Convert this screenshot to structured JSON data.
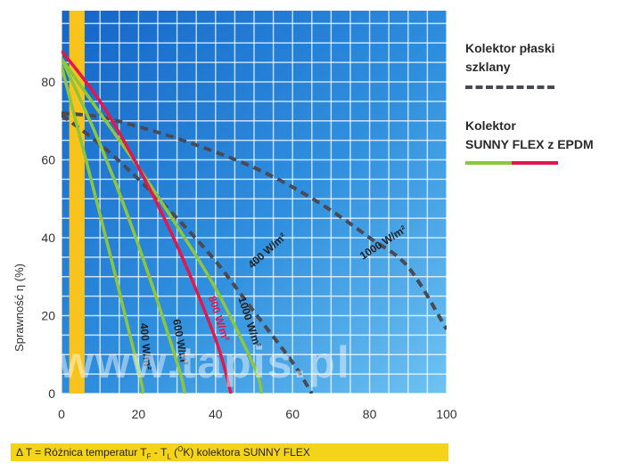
{
  "chart_data": {
    "type": "line",
    "title": "",
    "xlabel": "",
    "ylabel": "Sprawność η (%)",
    "xlim": [
      0,
      100
    ],
    "ylim": [
      0,
      100
    ],
    "x_ticks": [
      "0",
      "20",
      "40",
      "60",
      "80",
      "100"
    ],
    "y_ticks": [
      "0",
      "20",
      "40",
      "60",
      "80"
    ],
    "grid": true,
    "highlight_band_x": [
      2,
      6
    ],
    "legend": [
      {
        "label": "Kolektor płaski szklany",
        "style": "dashed",
        "color": "#4a4a55"
      },
      {
        "label": "Kolektor SUNNY FLEX z EPDM",
        "style": "solid",
        "colors": [
          "#8cc63f",
          "#e3174b"
        ]
      }
    ],
    "series": [
      {
        "label": "1000 W/m²",
        "group": "flat",
        "color": "#4a4a55",
        "dash": true,
        "x": [
          0,
          10,
          20,
          30,
          40,
          50,
          60,
          70,
          80,
          90,
          100
        ],
        "y": [
          72,
          71,
          68.5,
          65.5,
          62,
          58,
          53,
          47,
          40,
          32.5,
          16.5
        ]
      },
      {
        "label": "400 W/m²",
        "group": "flat",
        "color": "#4a4a55",
        "dash": true,
        "x": [
          0,
          10,
          20,
          30,
          40,
          50,
          60,
          65
        ],
        "y": [
          71.5,
          64,
          55,
          45,
          34,
          21,
          8,
          0
        ]
      },
      {
        "label": "1000 W/m²",
        "group": "sunny",
        "color": "#8cc63f",
        "dash": false,
        "x": [
          0,
          10,
          20,
          30,
          40,
          50,
          52
        ],
        "y": [
          86,
          72,
          58,
          43,
          27,
          7,
          0
        ]
      },
      {
        "label": "800 W/m²",
        "group": "sunny",
        "color": "#e3174b",
        "dash": false,
        "x": [
          0,
          10,
          20,
          30,
          40,
          44
        ],
        "y": [
          88,
          75,
          58,
          38,
          14,
          0
        ]
      },
      {
        "label": "600 W/m²",
        "group": "sunny",
        "color": "#8cc63f",
        "dash": false,
        "x": [
          0,
          10,
          20,
          30,
          32
        ],
        "y": [
          86,
          64,
          38,
          8,
          0
        ]
      },
      {
        "label": "400 W/m²",
        "group": "sunny",
        "color": "#8cc63f",
        "dash": false,
        "x": [
          0,
          10,
          20,
          21
        ],
        "y": [
          84,
          46,
          6,
          0
        ]
      }
    ],
    "curve_labels": [
      {
        "text": "1000 W/m²",
        "series": 0,
        "x": 84,
        "y": 38,
        "rot": -33,
        "color": "#222"
      },
      {
        "text": "400 W/m²",
        "series": 1,
        "x": 54,
        "y": 36,
        "rot": -42,
        "color": "#222"
      },
      {
        "text": "1000 W/m²",
        "series": 2,
        "x": 48,
        "y": 18,
        "rot": 72,
        "color": "#222"
      },
      {
        "text": "800 W/m²",
        "series": 3,
        "x": 40,
        "y": 19,
        "rot": 72,
        "color": "#e3174b"
      },
      {
        "text": "600 W/m²",
        "series": 4,
        "x": 30,
        "y": 13,
        "rot": 80,
        "color": "#222"
      },
      {
        "text": "400 W/m²",
        "series": 5,
        "x": 21,
        "y": 12,
        "rot": 85,
        "color": "#222"
      }
    ]
  },
  "legend_text": {
    "flat_line1": "Kolektor płaski",
    "flat_line2": "szklany",
    "sunny_line1": "Kolektor",
    "sunny_line2": "SUNNY FLEX z EPDM"
  },
  "footer": {
    "prefix": "Δ T = Różnica temperatur T",
    "sub1": "F",
    "mid": " - T",
    "sub2": "L",
    "paren_open": " (",
    "sup": "O",
    "unit": "K) kolektora SUNNY FLEX"
  },
  "watermark": "www.tapis.pl"
}
